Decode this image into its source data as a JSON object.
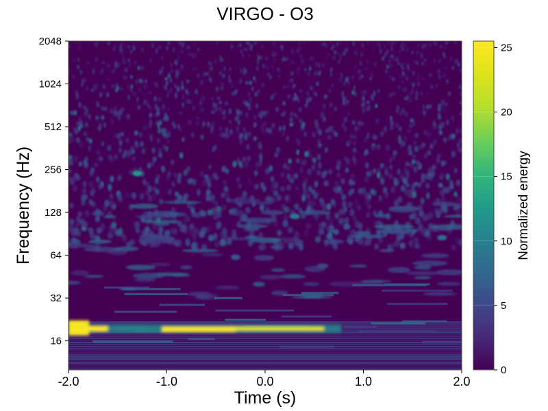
{
  "chart_data": {
    "type": "heatmap",
    "title": "VIRGO - O3",
    "xlabel": "Time (s)",
    "ylabel": "Frequency (Hz)",
    "colorbar_label": "Normalized energy",
    "x_range": [
      -2.0,
      2.0
    ],
    "y_range": [
      10,
      2048
    ],
    "y_scale": "log2",
    "x_ticks": [
      {
        "value": -2.0,
        "label": "-2.0"
      },
      {
        "value": -1.0,
        "label": "-1.0"
      },
      {
        "value": 0.0,
        "label": "0.0"
      },
      {
        "value": 1.0,
        "label": "1.0"
      },
      {
        "value": 2.0,
        "label": "2.0"
      }
    ],
    "y_ticks": [
      {
        "value": 16,
        "label": "16"
      },
      {
        "value": 32,
        "label": "32"
      },
      {
        "value": 64,
        "label": "64"
      },
      {
        "value": 128,
        "label": "128"
      },
      {
        "value": 256,
        "label": "256"
      },
      {
        "value": 512,
        "label": "512"
      },
      {
        "value": 1024,
        "label": "1024"
      },
      {
        "value": 2048,
        "label": "2048"
      }
    ],
    "colorbar_range": [
      0,
      25.5
    ],
    "colorbar_ticks": [
      {
        "value": 0,
        "label": "0"
      },
      {
        "value": 5,
        "label": "5"
      },
      {
        "value": 10,
        "label": "10"
      },
      {
        "value": 15,
        "label": "15"
      },
      {
        "value": 20,
        "label": "20"
      },
      {
        "value": 25,
        "label": "25"
      }
    ],
    "colormap": "viridis",
    "features": [
      {
        "name": "bright-track",
        "t_start": -2.0,
        "t_end": 0.6,
        "freq": 19.5,
        "energy": 25
      },
      {
        "name": "hotspot-1",
        "t": -1.3,
        "freq": 240,
        "energy": 12
      },
      {
        "name": "hotspot-2",
        "t": 0.3,
        "freq": 120,
        "energy": 9
      },
      {
        "name": "hotspot-3",
        "t": -0.3,
        "freq": 62,
        "energy": 6
      },
      {
        "name": "hotspot-4",
        "t": 1.8,
        "freq": 85,
        "energy": 8
      }
    ]
  }
}
